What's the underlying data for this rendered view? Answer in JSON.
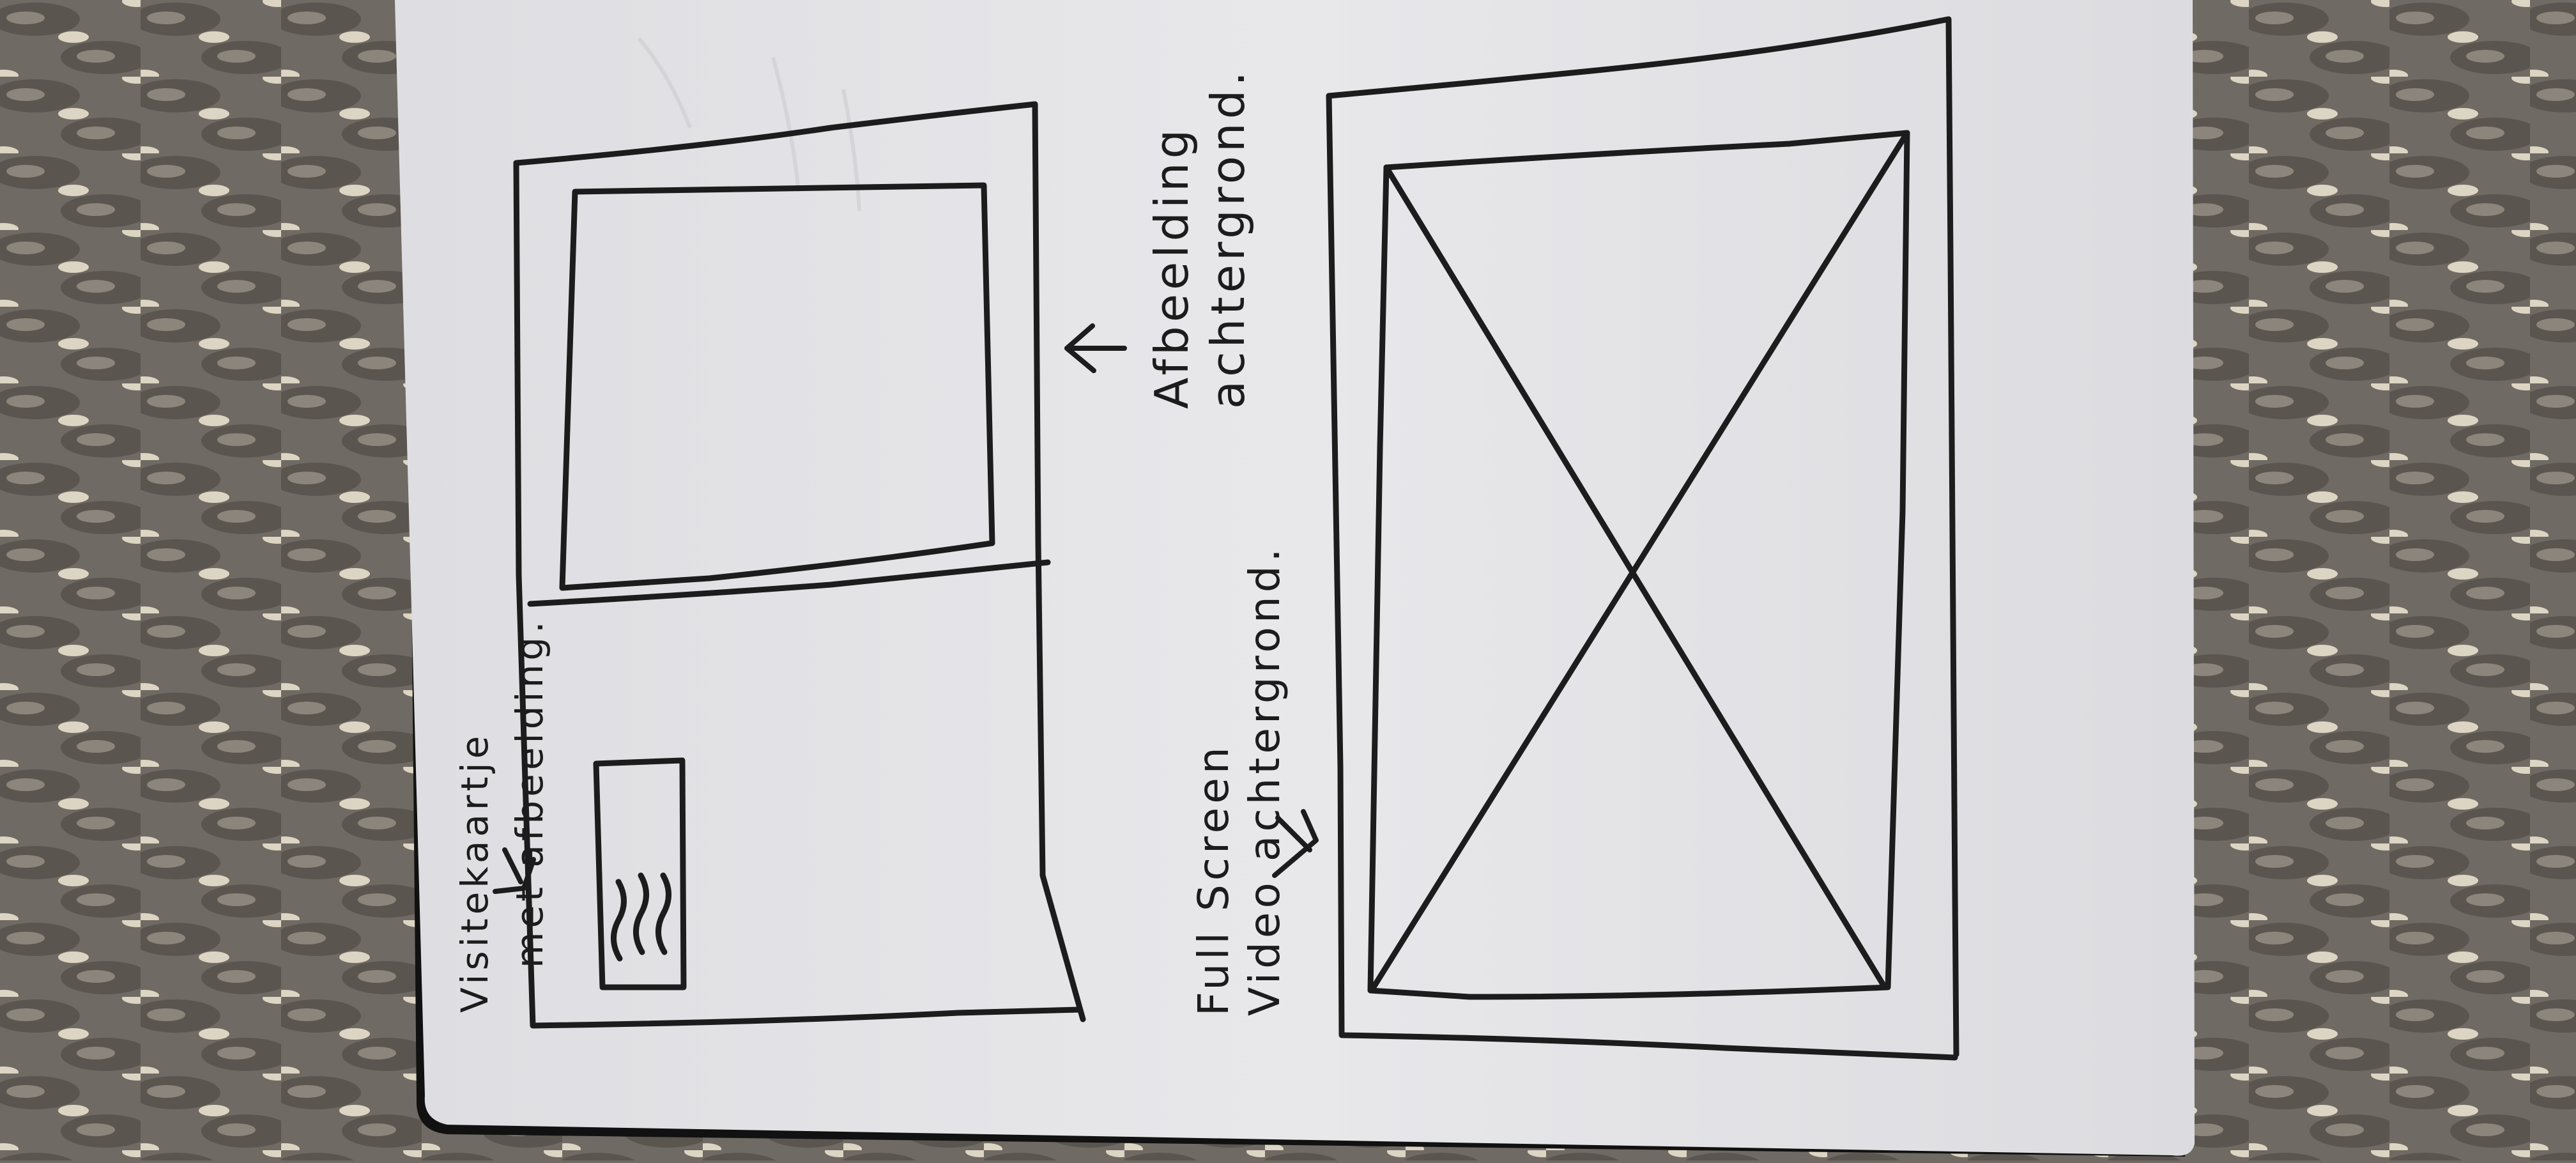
{
  "photo": {
    "colors": {
      "rug_base": "#6f6a63",
      "rug_dark": "#4a4540",
      "rug_light": "#d9d1bf",
      "paper": "#e4e4e7",
      "ink": "#1c1c1c"
    }
  },
  "sketch": {
    "card_wireframe_label": {
      "line1": "Visitekaartje",
      "line2": "met afbeelding."
    },
    "image_background_label": {
      "line1": "Afbeelding",
      "line2": "achtergrond."
    },
    "video_wireframe_label": {
      "line1": "Full Screen",
      "line2": "Video achtergrond."
    },
    "arrow_icons": [
      "arrow-down-icon",
      "arrow-up-icon",
      "arrow-down-icon"
    ]
  }
}
